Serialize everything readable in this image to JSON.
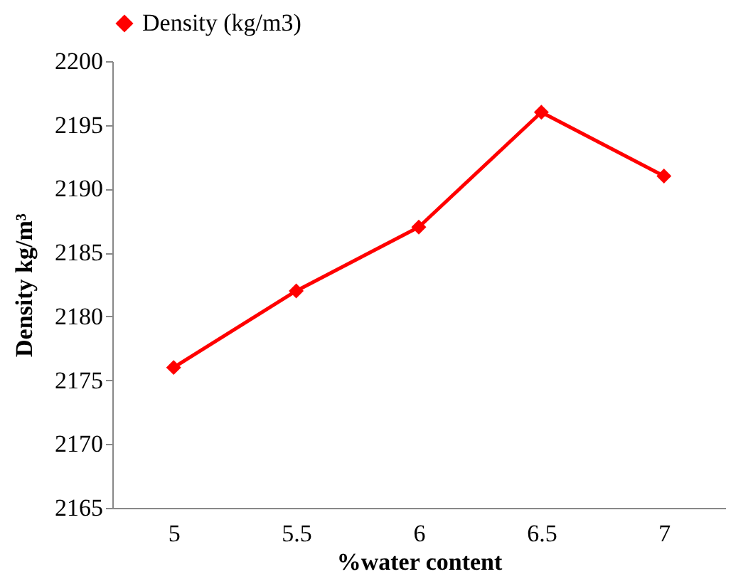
{
  "chart_data": {
    "type": "line",
    "xlabel": "%water content",
    "ylabel": "Density kg/m³",
    "categories": [
      "5",
      "5.5",
      "6",
      "6.5",
      "7"
    ],
    "series": [
      {
        "name": "Density (kg/m3)",
        "color": "#ff0000",
        "values": [
          2176,
          2182,
          2187,
          2196,
          2191
        ]
      }
    ],
    "ylim": [
      2165,
      2200
    ],
    "yticks": [
      2165,
      2170,
      2175,
      2180,
      2185,
      2190,
      2195,
      2200
    ],
    "grid": false,
    "legend": "top",
    "marker": "diamond",
    "line_style": "solid"
  }
}
